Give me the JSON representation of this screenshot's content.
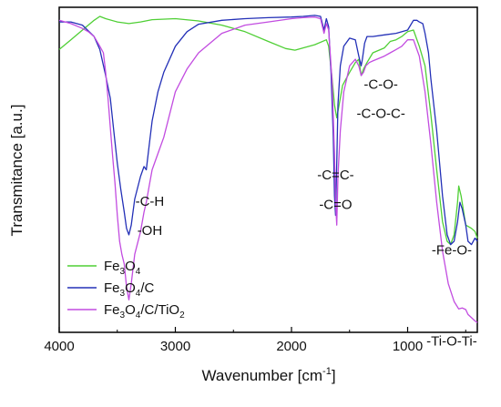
{
  "chart_data": {
    "type": "line",
    "xlabel": "Wavenumber [cm",
    "xlabel_sup": "-1",
    "xlabel_end": "]",
    "ylabel": "Transmitance [a.u.]",
    "xlim": [
      4000,
      400
    ],
    "x_reversed": true,
    "ylim": [
      0,
      1
    ],
    "y_ticks_shown": false,
    "grid": false,
    "legend_position": "bottom-left",
    "xticks": [
      4000,
      3000,
      2000,
      1000
    ],
    "xtick_labels": [
      "4000",
      "3000",
      "2000",
      "1000"
    ],
    "series": [
      {
        "name": "Fe3O4",
        "name_parts": [
          [
            "Fe",
            ""
          ],
          [
            "3",
            "sub"
          ],
          [
            "O",
            ""
          ],
          [
            "4",
            "sub"
          ]
        ],
        "color": "#4fcf35",
        "x": [
          4000,
          3900,
          3800,
          3700,
          3650,
          3600,
          3500,
          3400,
          3300,
          3200,
          3000,
          2800,
          2600,
          2400,
          2200,
          2050,
          1970,
          1900,
          1800,
          1700,
          1680,
          1650,
          1630,
          1610,
          1590,
          1560,
          1500,
          1450,
          1420,
          1400,
          1380,
          1350,
          1300,
          1200,
          1150,
          1100,
          1050,
          1000,
          950,
          900,
          850,
          800,
          750,
          700,
          660,
          630,
          600,
          570,
          560,
          540,
          500,
          450,
          420,
          400
        ],
        "y": [
          0.87,
          0.9,
          0.93,
          0.96,
          0.972,
          0.965,
          0.955,
          0.95,
          0.955,
          0.962,
          0.965,
          0.958,
          0.945,
          0.925,
          0.895,
          0.873,
          0.868,
          0.875,
          0.885,
          0.9,
          0.88,
          0.78,
          0.7,
          0.66,
          0.7,
          0.76,
          0.8,
          0.83,
          0.84,
          0.79,
          0.81,
          0.83,
          0.86,
          0.875,
          0.895,
          0.9,
          0.91,
          0.925,
          0.93,
          0.88,
          0.82,
          0.67,
          0.5,
          0.34,
          0.28,
          0.27,
          0.3,
          0.4,
          0.45,
          0.42,
          0.33,
          0.32,
          0.31,
          0.29
        ]
      },
      {
        "name": "Fe3O4/C",
        "name_parts": [
          [
            "Fe",
            ""
          ],
          [
            "3",
            "sub"
          ],
          [
            "O",
            ""
          ],
          [
            "4",
            "sub"
          ],
          [
            "/C",
            ""
          ]
        ],
        "color": "#2330b7",
        "x": [
          4000,
          3900,
          3800,
          3700,
          3650,
          3600,
          3560,
          3530,
          3500,
          3470,
          3440,
          3420,
          3400,
          3380,
          3350,
          3300,
          3270,
          3250,
          3220,
          3200,
          3150,
          3100,
          3000,
          2900,
          2800,
          2600,
          2400,
          2200,
          2000,
          1900,
          1800,
          1750,
          1720,
          1700,
          1680,
          1660,
          1640,
          1630,
          1620,
          1610,
          1600,
          1580,
          1550,
          1500,
          1450,
          1420,
          1400,
          1390,
          1370,
          1350,
          1300,
          1200,
          1100,
          1000,
          950,
          920,
          900,
          870,
          850,
          820,
          800,
          750,
          700,
          660,
          630,
          600,
          570,
          550,
          530,
          500,
          480,
          450,
          420,
          400
        ],
        "y": [
          0.955,
          0.955,
          0.945,
          0.91,
          0.87,
          0.79,
          0.72,
          0.62,
          0.52,
          0.44,
          0.37,
          0.32,
          0.3,
          0.33,
          0.41,
          0.48,
          0.51,
          0.5,
          0.59,
          0.65,
          0.74,
          0.8,
          0.88,
          0.925,
          0.948,
          0.96,
          0.965,
          0.968,
          0.97,
          0.972,
          0.975,
          0.972,
          0.93,
          0.965,
          0.94,
          0.8,
          0.6,
          0.42,
          0.36,
          0.52,
          0.7,
          0.82,
          0.88,
          0.905,
          0.9,
          0.85,
          0.82,
          0.84,
          0.89,
          0.91,
          0.91,
          0.915,
          0.92,
          0.93,
          0.96,
          0.96,
          0.955,
          0.95,
          0.92,
          0.86,
          0.78,
          0.62,
          0.42,
          0.3,
          0.27,
          0.28,
          0.34,
          0.4,
          0.38,
          0.33,
          0.28,
          0.27,
          0.29,
          0.28
        ]
      },
      {
        "name": "Fe3O4/C/TiO2",
        "name_parts": [
          [
            "Fe",
            ""
          ],
          [
            "3",
            "sub"
          ],
          [
            "O",
            ""
          ],
          [
            "4",
            "sub"
          ],
          [
            "/C/TiO",
            ""
          ],
          [
            "2",
            "sub"
          ]
        ],
        "color": "#c24ce0",
        "x": [
          4000,
          3900,
          3800,
          3750,
          3700,
          3650,
          3620,
          3600,
          3580,
          3560,
          3540,
          3520,
          3500,
          3480,
          3460,
          3440,
          3420,
          3400,
          3380,
          3350,
          3300,
          3270,
          3250,
          3220,
          3200,
          3150,
          3100,
          3000,
          2900,
          2800,
          2700,
          2600,
          2400,
          2200,
          2000,
          1900,
          1800,
          1750,
          1720,
          1700,
          1680,
          1650,
          1630,
          1620,
          1610,
          1600,
          1580,
          1550,
          1500,
          1450,
          1420,
          1400,
          1380,
          1360,
          1330,
          1300,
          1200,
          1150,
          1100,
          1050,
          1000,
          950,
          900,
          850,
          800,
          750,
          700,
          650,
          600,
          560,
          530,
          500,
          480,
          450,
          420,
          400
        ],
        "y": [
          0.96,
          0.95,
          0.935,
          0.925,
          0.91,
          0.88,
          0.86,
          0.8,
          0.72,
          0.63,
          0.54,
          0.46,
          0.36,
          0.28,
          0.24,
          0.21,
          0.14,
          0.1,
          0.15,
          0.24,
          0.31,
          0.37,
          0.4,
          0.46,
          0.5,
          0.55,
          0.6,
          0.74,
          0.81,
          0.86,
          0.89,
          0.92,
          0.945,
          0.955,
          0.965,
          0.968,
          0.97,
          0.965,
          0.92,
          0.95,
          0.93,
          0.77,
          0.55,
          0.4,
          0.33,
          0.48,
          0.62,
          0.74,
          0.82,
          0.84,
          0.82,
          0.79,
          0.8,
          0.82,
          0.83,
          0.835,
          0.85,
          0.86,
          0.87,
          0.88,
          0.9,
          0.9,
          0.85,
          0.74,
          0.58,
          0.4,
          0.25,
          0.15,
          0.095,
          0.072,
          0.075,
          0.07,
          0.055,
          0.045,
          0.035,
          0.03
        ]
      }
    ],
    "annotations": [
      {
        "text": "-C-H",
        "x": 3220,
        "y": 0.39
      },
      {
        "text": "-OH",
        "x": 3220,
        "y": 0.3
      },
      {
        "text": "-C=C-",
        "x": 1620,
        "y": 0.47
      },
      {
        "text": "-C=O",
        "x": 1620,
        "y": 0.38
      },
      {
        "text": "-C-O-",
        "x": 1230,
        "y": 0.75
      },
      {
        "text": "-C-O-C-",
        "x": 1230,
        "y": 0.66
      },
      {
        "text": "-Fe-O-",
        "x": 620,
        "y": 0.24
      },
      {
        "text": "-Ti-O-Ti-",
        "x": 620,
        "y": -0.04
      }
    ]
  }
}
